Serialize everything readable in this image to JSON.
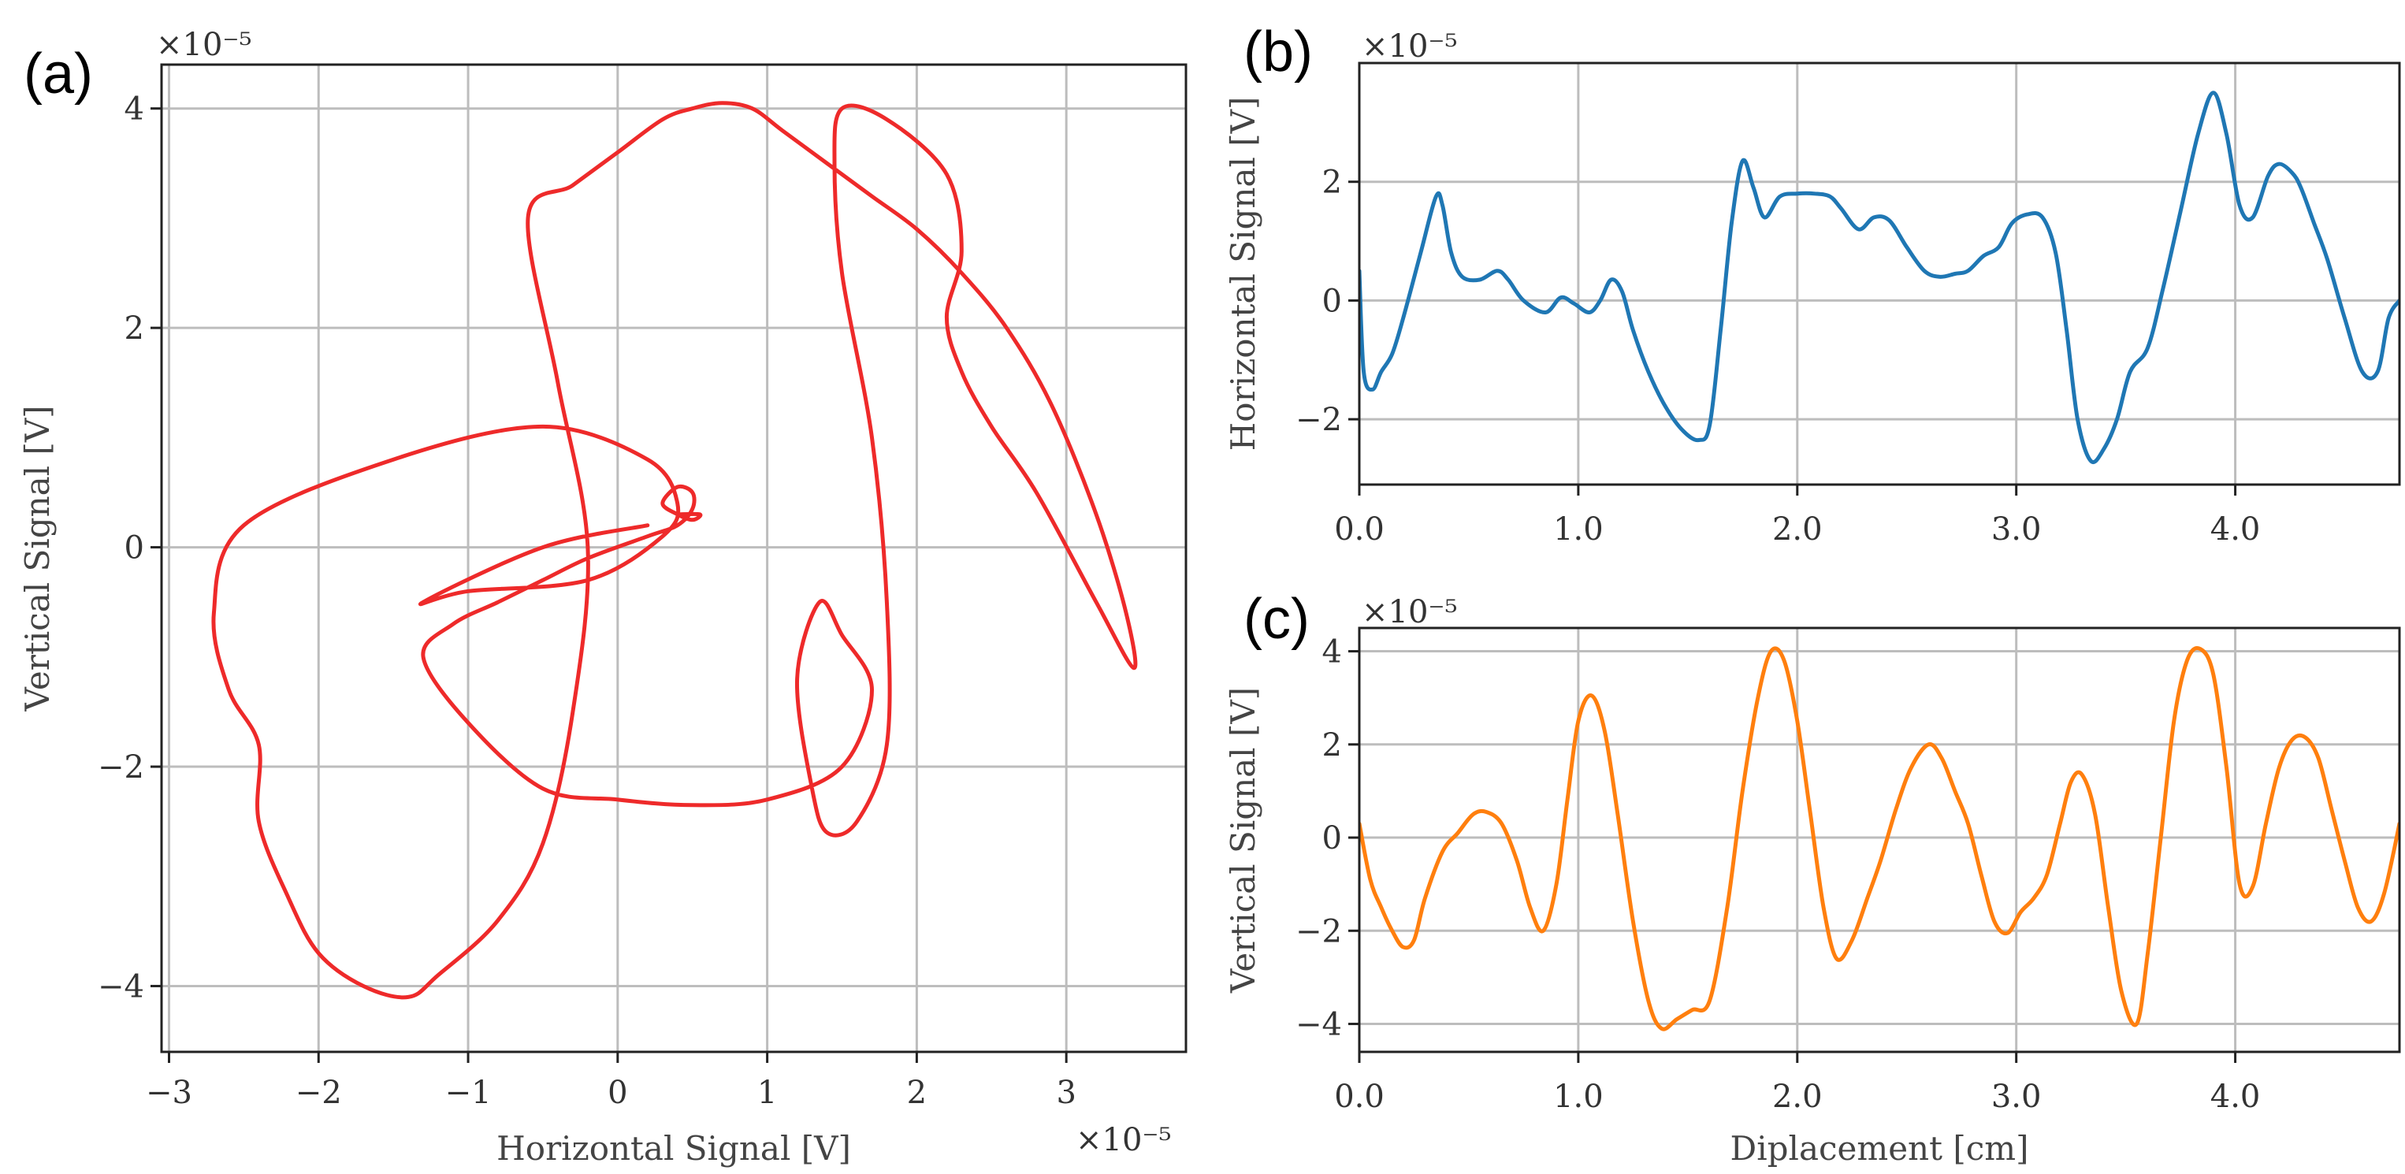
{
  "chart_data": [
    {
      "id": "a",
      "panel_label": "(a)",
      "type": "line",
      "xlabel": "Horizontal Signal [V]",
      "ylabel": "Vertical Signal [V]",
      "x_offset_label": "×10⁻⁵",
      "y_offset_label": "×10⁻⁵",
      "xlim": [
        -3.05,
        3.8
      ],
      "ylim": [
        -4.6,
        4.4
      ],
      "xticks": [
        -3,
        -2,
        -1,
        0,
        1,
        2,
        3
      ],
      "xtick_labels": [
        "−3",
        "−2",
        "−1",
        "0",
        "1",
        "2",
        "3"
      ],
      "yticks": [
        -4,
        -2,
        0,
        2,
        4
      ],
      "ytick_labels": [
        "−4",
        "−2",
        "0",
        "2",
        "4"
      ],
      "grid": true,
      "color": "#ee2a2a",
      "series": [
        {
          "x": [
            0.2,
            -0.5,
            -1.3,
            -1.0,
            -0.2,
            0.3,
            0.4,
            0.2,
            -0.5,
            -1.5,
            -2.5,
            -2.7,
            -2.6,
            -2.4,
            -2.4,
            -2.2,
            -2.0,
            -1.7,
            -1.4,
            -1.2,
            -0.8,
            -0.5,
            -0.3,
            -0.2,
            -0.4,
            -0.6,
            -0.3,
            0.0,
            0.3,
            0.5,
            0.7,
            0.9,
            1.1,
            1.4,
            1.7,
            2.0,
            2.3,
            2.6,
            2.9,
            3.2,
            3.4,
            3.45,
            3.2,
            2.8,
            2.5,
            2.3,
            2.2,
            2.3,
            2.2,
            1.8,
            1.5,
            1.45,
            1.5,
            1.7,
            1.8,
            1.8,
            1.6,
            1.4,
            1.3,
            1.2,
            1.35,
            1.5,
            1.7,
            1.5,
            1.0,
            0.5,
            0.0,
            -0.5,
            -1.0,
            -1.3,
            -1.1,
            -0.8,
            -0.5,
            -0.2,
            0.2,
            0.4,
            0.5,
            0.5,
            0.4,
            0.3,
            0.4,
            0.5,
            0.55,
            0.4
          ],
          "y": [
            0.2,
            0.0,
            -0.5,
            -0.4,
            -0.3,
            0.1,
            0.4,
            0.8,
            1.1,
            0.8,
            0.2,
            -0.6,
            -1.3,
            -1.8,
            -2.5,
            -3.2,
            -3.7,
            -4.0,
            -4.1,
            -3.9,
            -3.4,
            -2.7,
            -1.5,
            0.0,
            1.5,
            3.0,
            3.3,
            3.6,
            3.9,
            4.0,
            4.05,
            4.0,
            3.8,
            3.5,
            3.2,
            2.9,
            2.5,
            2.0,
            1.3,
            0.3,
            -0.6,
            -1.1,
            -0.5,
            0.5,
            1.1,
            1.6,
            2.1,
            2.7,
            3.4,
            3.9,
            4.0,
            3.5,
            2.5,
            1.0,
            -0.5,
            -1.8,
            -2.5,
            -2.6,
            -2.2,
            -1.2,
            -0.5,
            -0.8,
            -1.3,
            -2.0,
            -2.3,
            -2.35,
            -2.3,
            -2.2,
            -1.6,
            -1.0,
            -0.7,
            -0.5,
            -0.3,
            -0.1,
            0.1,
            0.2,
            0.35,
            0.5,
            0.55,
            0.4,
            0.3,
            0.25,
            0.3,
            0.3
          ]
        }
      ]
    },
    {
      "id": "b",
      "panel_label": "(b)",
      "type": "line",
      "xlabel": "",
      "ylabel": "Horizontal Signal [V]",
      "y_offset_label": "×10⁻⁵",
      "xlim": [
        0.0,
        4.75
      ],
      "ylim": [
        -3.1,
        4.0
      ],
      "xticks": [
        0,
        1,
        2,
        3,
        4
      ],
      "xtick_labels": [
        "0.0",
        "1.0",
        "2.0",
        "3.0",
        "4.0"
      ],
      "yticks": [
        -2,
        0,
        2
      ],
      "ytick_labels": [
        "−2",
        "0",
        "2"
      ],
      "grid": true,
      "color": "#1f77b4",
      "series": [
        {
          "x": [
            0.0,
            0.02,
            0.06,
            0.1,
            0.15,
            0.2,
            0.28,
            0.35,
            0.38,
            0.42,
            0.47,
            0.55,
            0.63,
            0.68,
            0.75,
            0.85,
            0.92,
            0.98,
            1.05,
            1.1,
            1.15,
            1.2,
            1.25,
            1.32,
            1.4,
            1.48,
            1.55,
            1.6,
            1.65,
            1.7,
            1.75,
            1.8,
            1.85,
            1.92,
            2.0,
            2.08,
            2.15,
            2.2,
            2.28,
            2.35,
            2.42,
            2.5,
            2.58,
            2.65,
            2.72,
            2.78,
            2.85,
            2.92,
            2.98,
            3.05,
            3.12,
            3.18,
            3.23,
            3.28,
            3.34,
            3.4,
            3.46,
            3.52,
            3.6,
            3.67,
            3.75,
            3.83,
            3.9,
            3.96,
            4.02,
            4.08,
            4.15,
            4.2,
            4.26,
            4.3,
            4.36,
            4.42,
            4.5,
            4.58,
            4.65,
            4.7,
            4.75
          ],
          "y": [
            0.5,
            -1.2,
            -1.5,
            -1.2,
            -0.9,
            -0.3,
            0.8,
            1.75,
            1.6,
            0.8,
            0.4,
            0.35,
            0.5,
            0.35,
            0.0,
            -0.2,
            0.05,
            -0.05,
            -0.2,
            0.0,
            0.35,
            0.15,
            -0.5,
            -1.2,
            -1.8,
            -2.2,
            -2.35,
            -2.1,
            -0.5,
            1.3,
            2.35,
            1.9,
            1.4,
            1.75,
            1.8,
            1.8,
            1.75,
            1.55,
            1.2,
            1.4,
            1.35,
            0.9,
            0.5,
            0.4,
            0.45,
            0.5,
            0.75,
            0.9,
            1.3,
            1.45,
            1.4,
            0.8,
            -0.5,
            -2.0,
            -2.7,
            -2.5,
            -2.0,
            -1.2,
            -0.8,
            0.2,
            1.5,
            2.8,
            3.5,
            2.8,
            1.6,
            1.4,
            2.1,
            2.3,
            2.15,
            1.9,
            1.3,
            0.7,
            -0.3,
            -1.2,
            -1.2,
            -0.3,
            0.0
          ]
        }
      ]
    },
    {
      "id": "c",
      "panel_label": "(c)",
      "type": "line",
      "xlabel": "Diplacement [cm]",
      "ylabel": "Vertical Signal [V]",
      "y_offset_label": "×10⁻⁵",
      "xlim": [
        0.0,
        4.75
      ],
      "ylim": [
        -4.6,
        4.5
      ],
      "xticks": [
        0,
        1,
        2,
        3,
        4
      ],
      "xtick_labels": [
        "0.0",
        "1.0",
        "2.0",
        "3.0",
        "4.0"
      ],
      "yticks": [
        -4,
        -2,
        0,
        2,
        4
      ],
      "ytick_labels": [
        "−4",
        "−2",
        "0",
        "2",
        "4"
      ],
      "grid": true,
      "color": "#ff7f0e",
      "series": [
        {
          "x": [
            0.0,
            0.05,
            0.1,
            0.15,
            0.2,
            0.25,
            0.3,
            0.38,
            0.45,
            0.52,
            0.58,
            0.65,
            0.72,
            0.78,
            0.84,
            0.9,
            0.95,
            1.0,
            1.06,
            1.12,
            1.18,
            1.25,
            1.32,
            1.38,
            1.45,
            1.52,
            1.6,
            1.68,
            1.75,
            1.82,
            1.88,
            1.94,
            2.0,
            2.06,
            2.12,
            2.18,
            2.25,
            2.32,
            2.38,
            2.45,
            2.52,
            2.6,
            2.66,
            2.72,
            2.78,
            2.84,
            2.9,
            2.96,
            3.02,
            3.08,
            3.14,
            3.2,
            3.25,
            3.3,
            3.36,
            3.42,
            3.48,
            3.55,
            3.6,
            3.66,
            3.72,
            3.78,
            3.84,
            3.9,
            3.96,
            4.02,
            4.08,
            4.14,
            4.2,
            4.26,
            4.32,
            4.38,
            4.44,
            4.5,
            4.56,
            4.62,
            4.68,
            4.75
          ],
          "y": [
            0.3,
            -0.9,
            -1.5,
            -2.0,
            -2.35,
            -2.2,
            -1.3,
            -0.3,
            0.1,
            0.5,
            0.55,
            0.3,
            -0.5,
            -1.5,
            -2.0,
            -1.0,
            0.8,
            2.5,
            3.05,
            2.3,
            0.5,
            -1.8,
            -3.5,
            -4.1,
            -3.9,
            -3.7,
            -3.5,
            -1.5,
            1.0,
            3.0,
            4.0,
            3.8,
            2.5,
            0.5,
            -1.5,
            -2.6,
            -2.2,
            -1.3,
            -0.5,
            0.6,
            1.5,
            2.0,
            1.7,
            1.0,
            0.3,
            -0.8,
            -1.8,
            -2.05,
            -1.6,
            -1.3,
            -0.8,
            0.3,
            1.2,
            1.35,
            0.5,
            -1.5,
            -3.3,
            -4.0,
            -2.5,
            0.0,
            2.5,
            3.8,
            4.05,
            3.5,
            1.5,
            -1.0,
            -1.05,
            0.3,
            1.5,
            2.1,
            2.15,
            1.7,
            0.6,
            -0.5,
            -1.5,
            -1.8,
            -1.2,
            0.3
          ]
        }
      ]
    }
  ]
}
